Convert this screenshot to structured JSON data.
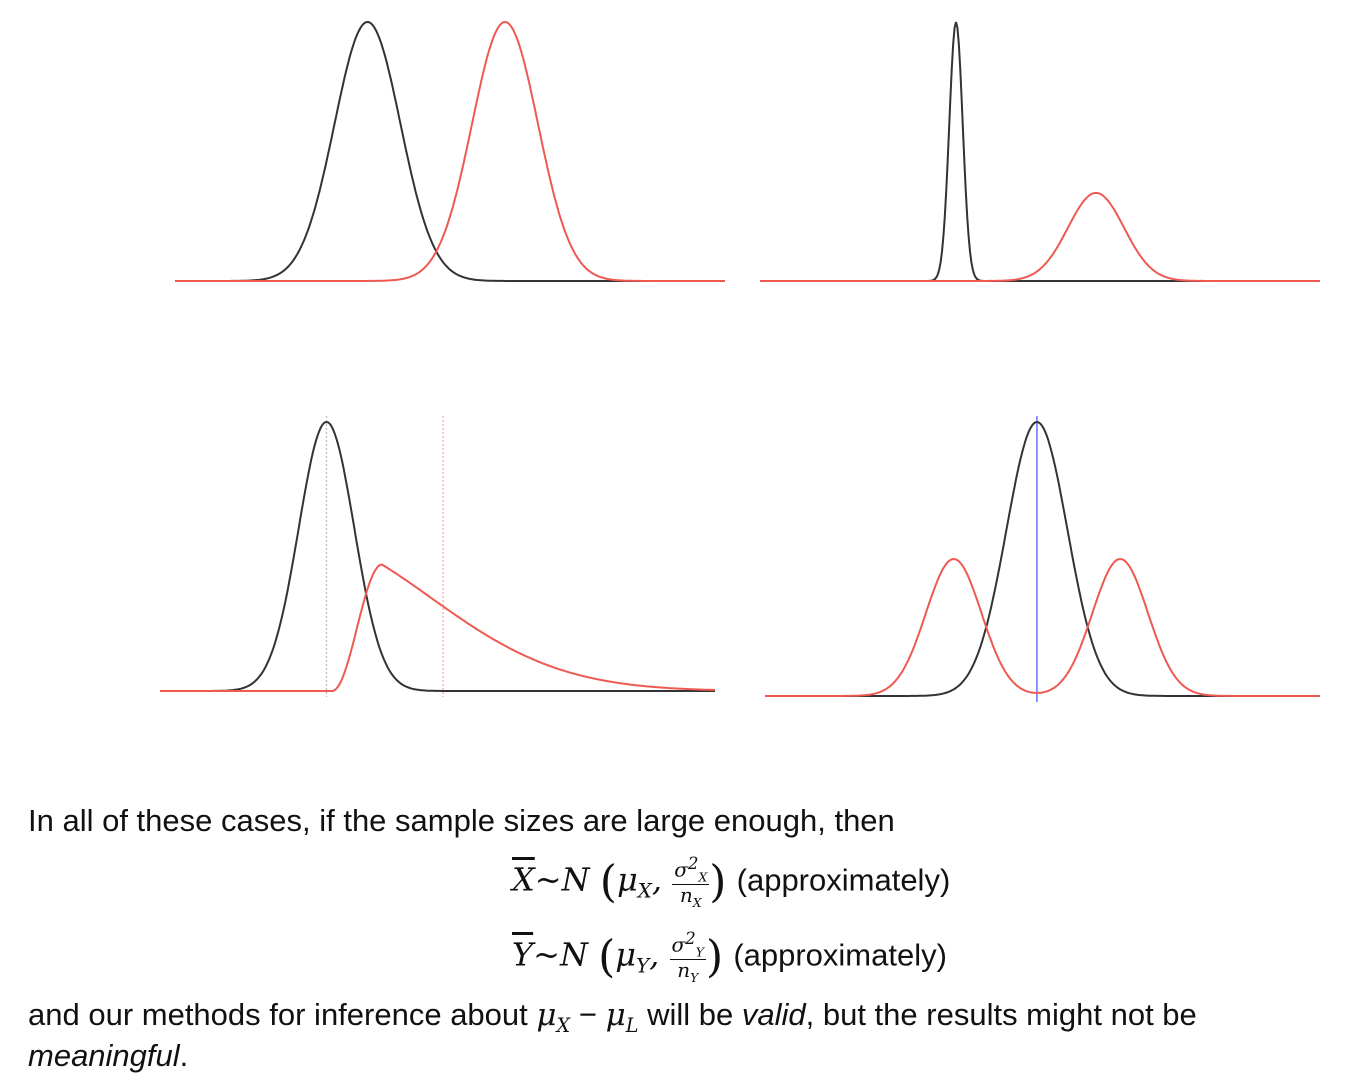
{
  "panels": [
    {
      "name": "panel-top-left",
      "baseline_color": "#ee5a52",
      "curves": [
        {
          "color": "#333333",
          "shape": "normal",
          "mean": 0.35,
          "sd": 0.06,
          "height": 1.0
        },
        {
          "color": "#ee5a52",
          "shape": "normal",
          "mean": 0.6,
          "sd": 0.06,
          "height": 1.0
        }
      ]
    },
    {
      "name": "panel-top-right",
      "curves": [
        {
          "color": "#333333",
          "shape": "normal",
          "mean": 0.35,
          "sd": 0.012,
          "height": 1.0
        },
        {
          "color": "#ee5a52",
          "shape": "normal",
          "mean": 0.6,
          "sd": 0.05,
          "height": 0.34
        }
      ]
    },
    {
      "name": "panel-bottom-left",
      "vlines": [
        {
          "x": 0.3,
          "color": "grey"
        },
        {
          "x": 0.51,
          "color": "red"
        }
      ],
      "curves": [
        {
          "color": "#333333",
          "shape": "normal",
          "mean": 0.3,
          "sd": 0.05,
          "height": 1.0
        },
        {
          "color": "#ee5a52",
          "shape": "skewed",
          "start": 0.31,
          "peak": 0.4,
          "end": 1.0,
          "height": 0.47
        }
      ]
    },
    {
      "name": "panel-bottom-right",
      "vlines": [
        {
          "x": 0.49,
          "color": "blue"
        }
      ],
      "curves": [
        {
          "color": "#333333",
          "shape": "normal",
          "mean": 0.49,
          "sd": 0.055,
          "height": 1.0
        },
        {
          "color": "#ee5a52",
          "shape": "bimodal",
          "means": [
            0.34,
            0.64
          ],
          "sd": 0.05,
          "height": 0.5
        }
      ]
    }
  ],
  "text": {
    "intro": "In all of these cases, if the sample sizes are large enough, then",
    "formula_x": {
      "lhs": "X",
      "dist": "~N",
      "mu": "μ",
      "sub": "X",
      "num_sigma": "σ",
      "num_sup": "2",
      "num_sub": "X",
      "den_n": "n",
      "den_sub": "X",
      "approx": "(approximately)"
    },
    "formula_y": {
      "lhs": "Y",
      "dist": "~N",
      "mu": "μ",
      "sub": "Y",
      "num_sigma": "σ",
      "num_sup": "2",
      "num_sub": "Y",
      "den_n": "n",
      "den_sub": "Y",
      "approx": "(approximately)"
    },
    "conclusion_a": "and our methods for inference about ",
    "conclusion_mu1": "μ",
    "conclusion_sub1": "X",
    "conclusion_minus": " − ",
    "conclusion_mu2": "μ",
    "conclusion_sub2": "L",
    "conclusion_b": " will be ",
    "conclusion_valid": "valid",
    "conclusion_c": ", but the results might not be",
    "conclusion_meaningful": "meaningful",
    "conclusion_end": "."
  }
}
